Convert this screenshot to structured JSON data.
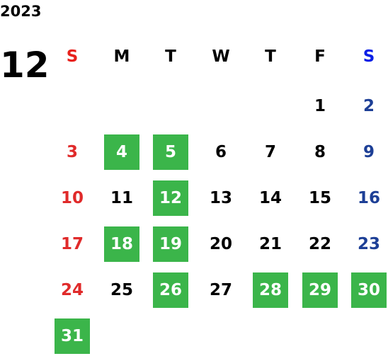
{
  "year": "2023",
  "month": "12",
  "weekdays": [
    "S",
    "M",
    "T",
    "W",
    "T",
    "F",
    "S"
  ],
  "weeks": [
    [
      null,
      null,
      null,
      null,
      null,
      {
        "day": "1"
      },
      {
        "day": "2"
      }
    ],
    [
      {
        "day": "3"
      },
      {
        "day": "4",
        "highlight": true
      },
      {
        "day": "5",
        "highlight": true
      },
      {
        "day": "6"
      },
      {
        "day": "7"
      },
      {
        "day": "8"
      },
      {
        "day": "9"
      }
    ],
    [
      {
        "day": "10"
      },
      {
        "day": "11"
      },
      {
        "day": "12",
        "highlight": true
      },
      {
        "day": "13"
      },
      {
        "day": "14"
      },
      {
        "day": "15"
      },
      {
        "day": "16"
      }
    ],
    [
      {
        "day": "17"
      },
      {
        "day": "18",
        "highlight": true
      },
      {
        "day": "19",
        "highlight": true
      },
      {
        "day": "20"
      },
      {
        "day": "21"
      },
      {
        "day": "22"
      },
      {
        "day": "23"
      }
    ],
    [
      {
        "day": "24"
      },
      {
        "day": "25"
      },
      {
        "day": "26",
        "highlight": true
      },
      {
        "day": "27"
      },
      {
        "day": "28",
        "highlight": true
      },
      {
        "day": "29",
        "highlight": true
      },
      {
        "day": "30",
        "highlight": true
      }
    ],
    [
      {
        "day": "31",
        "highlight": true
      },
      null,
      null,
      null,
      null,
      null,
      null
    ]
  ]
}
